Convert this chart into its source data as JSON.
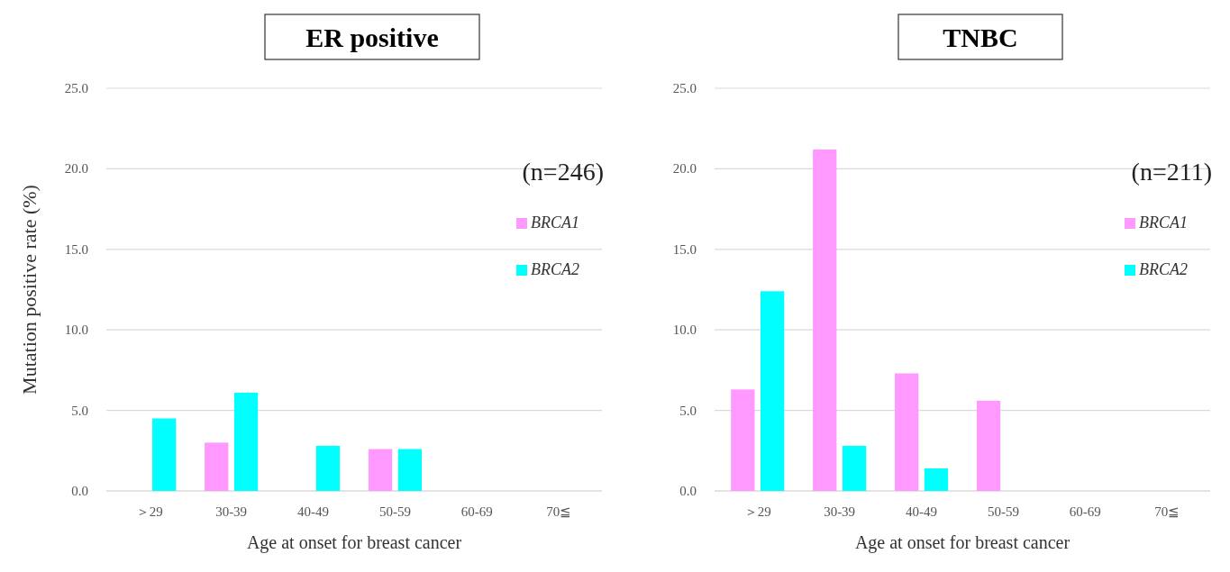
{
  "chart_data": [
    {
      "type": "bar",
      "title": "ER positive",
      "xlabel": "Age at onset for breast cancer",
      "ylabel": "Mutation positive rate (%)",
      "categories": [
        "＞29",
        "30-39",
        "40-49",
        "50-59",
        "60-69",
        "70≦"
      ],
      "series": [
        {
          "name": "BRCA1",
          "color": "#ff99ff",
          "values": [
            0,
            3.0,
            0,
            2.6,
            0,
            0
          ]
        },
        {
          "name": "BRCA2",
          "color": "#00ffff",
          "values": [
            4.5,
            6.1,
            2.8,
            2.6,
            0,
            0
          ]
        }
      ],
      "ylim": [
        0,
        25
      ],
      "yticks": [
        {
          "value": 0,
          "label": "0.0"
        },
        {
          "value": 5,
          "label": "5.0"
        },
        {
          "value": 10,
          "label": "10.0"
        },
        {
          "value": 15,
          "label": "15.0"
        },
        {
          "value": 20,
          "label": "20.0"
        },
        {
          "value": 25,
          "label": "25.0"
        }
      ],
      "grid": "y",
      "legend": "right",
      "annotations": [
        "(n=246)"
      ]
    },
    {
      "type": "bar",
      "title": "TNBC",
      "xlabel": "Age at onset for breast cancer",
      "categories": [
        "＞29",
        "30-39",
        "40-49",
        "50-59",
        "60-69",
        "70≦"
      ],
      "series": [
        {
          "name": "BRCA1",
          "color": "#ff99ff",
          "values": [
            6.3,
            21.2,
            7.3,
            5.6,
            0,
            0
          ]
        },
        {
          "name": "BRCA2",
          "color": "#00ffff",
          "values": [
            12.4,
            2.8,
            1.4,
            0,
            0,
            0
          ]
        }
      ],
      "ylim": [
        0,
        25
      ],
      "yticks": [
        {
          "value": 0,
          "label": "0.0"
        },
        {
          "value": 5,
          "label": "5.0"
        },
        {
          "value": 10,
          "label": "10.0"
        },
        {
          "value": 15,
          "label": "15.0"
        },
        {
          "value": 20,
          "label": "20.0"
        },
        {
          "value": 25,
          "label": "25.0"
        }
      ],
      "grid": "y",
      "legend": "right",
      "annotations": [
        "(n=211)"
      ]
    }
  ]
}
